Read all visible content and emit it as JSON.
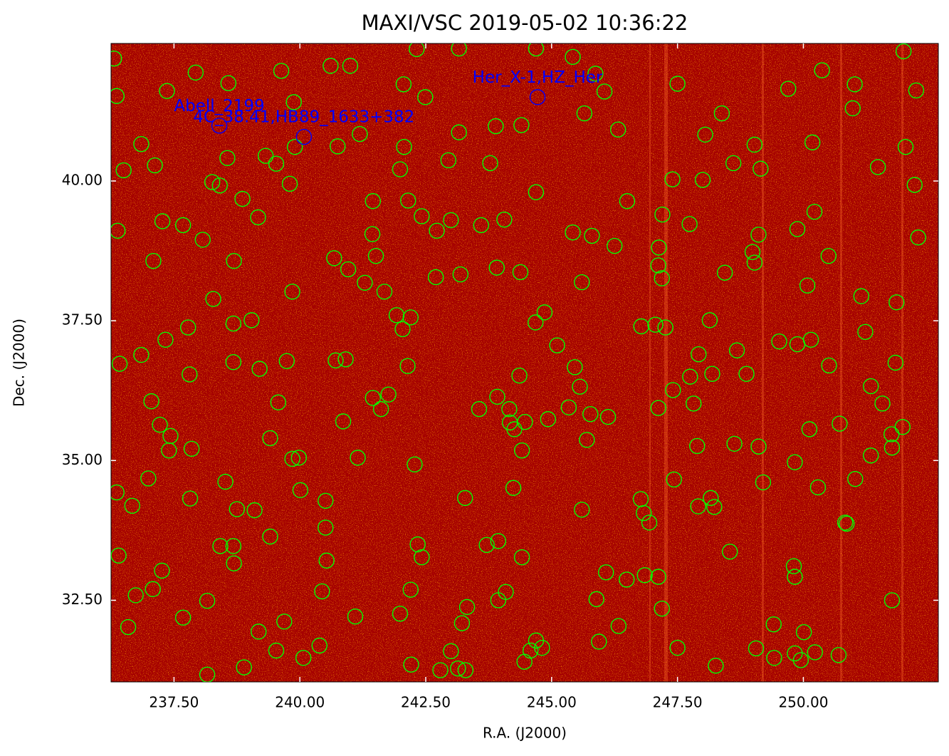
{
  "chart_data": {
    "type": "scatter",
    "title": "MAXI/VSC 2019-05-02 10:36:22",
    "xlabel": "R.A. (J2000)",
    "ylabel": "Dec. (J2000)",
    "xlim": [
      236.25,
      252.68
    ],
    "ylim": [
      31.04,
      42.46
    ],
    "xticks": [
      {
        "value": 237.5,
        "label": "237.50"
      },
      {
        "value": 240,
        "label": "240.00"
      },
      {
        "value": 242.5,
        "label": "242.50"
      },
      {
        "value": 245,
        "label": "245.00"
      },
      {
        "value": 247.5,
        "label": "247.50"
      },
      {
        "value": 250,
        "label": "250.00"
      }
    ],
    "yticks": [
      {
        "value": 32.5,
        "label": "32.50"
      },
      {
        "value": 35,
        "label": "35.00"
      },
      {
        "value": 37.5,
        "label": "37.50"
      },
      {
        "value": 40,
        "label": "40.00"
      }
    ],
    "series": [
      {
        "color": "#00ff00",
        "x": [
          236.31,
          236.36,
          237.93,
          238.58,
          239.63,
          241.0,
          240.61,
          237.36,
          239.88,
          242.06,
          242.49,
          242.32,
          243.16,
          244.69,
          245.42,
          245.87,
          246.05,
          245.65,
          247.5,
          249.7,
          250.37,
          251.02,
          252.24,
          251.99,
          250.98,
          248.38,
          244.4,
          243.89,
          243.16,
          241.19,
          242.07,
          240.75,
          239.9,
          238.56,
          239.32,
          239.53,
          236.85,
          237.12,
          236.5,
          238.26,
          238.41,
          239.8,
          241.99,
          242.95,
          243.78,
          244.69,
          246.32,
          248.05,
          249.03,
          250.18,
          252.03,
          248.61,
          249.15,
          251.48,
          252.21,
          247.4,
          248.0,
          238.86,
          241.45,
          242.15,
          242.42,
          243.0,
          242.72,
          243.6,
          244.06,
          246.5,
          247.2,
          247.74,
          250.22,
          252.28,
          236.38,
          237.27,
          237.68,
          238.07,
          239.17,
          241.44,
          245.42,
          245.8,
          246.25,
          247.13,
          249.11,
          249.88,
          248.99,
          249.03,
          250.5,
          237.09,
          238.69,
          240.68,
          240.96,
          241.51,
          241.29,
          241.68,
          242.7,
          243.19,
          243.91,
          244.38,
          245.6,
          247.12,
          247.19,
          248.44,
          250.08,
          251.15,
          251.85,
          238.28,
          239.85,
          238.68,
          239.04,
          237.78,
          237.33,
          241.92,
          242.2,
          242.04,
          244.68,
          244.86,
          246.78,
          247.06,
          247.26,
          248.14,
          251.23,
          236.42,
          236.85,
          237.81,
          238.68,
          239.2,
          239.74,
          240.71,
          240.91,
          242.14,
          245.11,
          245.46,
          244.36,
          247.92,
          247.75,
          248.19,
          248.68,
          248.87,
          249.52,
          249.88,
          250.15,
          250.51,
          251.83,
          251.34,
          237.05,
          239.57,
          241.45,
          241.76,
          241.61,
          243.56,
          243.92,
          244.16,
          245.56,
          245.34,
          245.77,
          246.12,
          247.12,
          247.41,
          247.82,
          240.86,
          244.17,
          244.26,
          244.47,
          244.93,
          237.22,
          237.43,
          237.4,
          237.85,
          239.41,
          239.85,
          239.98,
          241.15,
          242.28,
          244.41,
          245.7,
          247.89,
          248.63,
          249.11,
          249.83,
          250.12,
          250.72,
          251.03,
          251.57,
          251.75,
          251.76,
          251.97,
          251.34,
          236.36,
          236.67,
          236.99,
          238.52,
          237.82,
          240.01,
          240.51,
          238.75,
          239.1,
          243.28,
          244.24,
          245.6,
          246.77,
          246.83,
          246.94,
          247.43,
          247.91,
          248.16,
          248.23,
          249.2,
          250.29,
          250.86,
          250.83,
          236.4,
          238.42,
          238.68,
          238.69,
          239.41,
          240.51,
          240.53,
          242.34,
          242.42,
          243.71,
          243.94,
          244.41,
          248.54,
          249.81,
          249.83,
          237.26,
          237.08,
          236.74,
          238.16,
          240.44,
          242.2,
          244.09,
          243.94,
          243.32,
          245.89,
          246.08,
          246.49,
          246.85,
          247.12,
          247.19,
          251.76,
          236.59,
          237.68,
          239.18,
          239.69,
          240.39,
          241.1,
          241.99,
          243.22,
          246.33,
          245.94,
          249.41,
          250.01,
          239.53,
          240.07,
          238.89,
          238.16,
          242.21,
          242.79,
          243.0,
          243.14,
          243.29,
          244.46,
          244.58,
          244.69,
          244.81,
          247.5,
          248.26,
          249.06,
          249.42,
          249.83,
          249.95,
          250.23,
          250.7
        ],
        "y": [
          42.19,
          41.52,
          41.94,
          41.75,
          41.97,
          42.06,
          42.06,
          41.61,
          41.41,
          41.73,
          41.5,
          42.36,
          42.37,
          42.37,
          42.22,
          41.92,
          41.6,
          41.21,
          41.74,
          41.65,
          41.98,
          41.73,
          41.62,
          42.32,
          41.3,
          41.21,
          41.0,
          40.98,
          40.87,
          40.84,
          40.61,
          40.62,
          40.61,
          40.41,
          40.45,
          40.31,
          40.66,
          40.28,
          40.19,
          39.98,
          39.92,
          39.95,
          40.21,
          40.37,
          40.32,
          39.8,
          40.92,
          40.83,
          40.65,
          40.69,
          40.61,
          40.32,
          40.22,
          40.25,
          39.93,
          40.03,
          40.02,
          39.68,
          39.64,
          39.65,
          39.37,
          39.3,
          39.11,
          39.21,
          39.31,
          39.64,
          39.4,
          39.23,
          39.45,
          38.99,
          39.11,
          39.28,
          39.21,
          38.95,
          39.35,
          39.05,
          39.08,
          39.02,
          38.84,
          38.81,
          39.04,
          39.14,
          38.73,
          38.54,
          38.66,
          38.57,
          38.57,
          38.62,
          38.42,
          38.66,
          38.18,
          38.02,
          38.28,
          38.33,
          38.45,
          38.37,
          38.19,
          38.49,
          38.26,
          38.36,
          38.13,
          37.94,
          37.83,
          37.89,
          38.02,
          37.45,
          37.51,
          37.38,
          37.16,
          37.6,
          37.56,
          37.35,
          37.47,
          37.65,
          37.4,
          37.43,
          37.38,
          37.51,
          37.3,
          36.73,
          36.89,
          36.54,
          36.76,
          36.64,
          36.78,
          36.79,
          36.81,
          36.69,
          37.06,
          36.67,
          36.52,
          36.9,
          36.5,
          36.55,
          36.97,
          36.55,
          37.13,
          37.08,
          37.16,
          36.7,
          36.75,
          36.33,
          36.06,
          36.04,
          36.12,
          36.18,
          35.92,
          35.92,
          36.14,
          35.92,
          36.32,
          35.95,
          35.83,
          35.78,
          35.94,
          36.26,
          36.02,
          35.7,
          35.68,
          35.56,
          35.69,
          35.74,
          35.64,
          35.44,
          35.18,
          35.21,
          35.4,
          35.03,
          35.05,
          35.05,
          34.93,
          35.18,
          35.37,
          35.26,
          35.3,
          35.25,
          34.97,
          35.56,
          35.66,
          34.67,
          36.02,
          35.47,
          35.23,
          35.6,
          35.09,
          34.43,
          34.19,
          34.68,
          34.62,
          34.32,
          34.47,
          34.28,
          34.13,
          34.11,
          34.33,
          34.51,
          34.12,
          34.31,
          34.06,
          33.89,
          34.66,
          34.18,
          34.33,
          34.17,
          34.61,
          34.52,
          33.87,
          33.89,
          33.3,
          33.47,
          33.47,
          33.16,
          33.64,
          33.8,
          33.21,
          33.5,
          33.27,
          33.49,
          33.56,
          33.27,
          33.37,
          33.11,
          32.92,
          33.03,
          32.7,
          32.59,
          32.49,
          32.66,
          32.69,
          32.65,
          32.5,
          32.38,
          32.52,
          33.0,
          32.87,
          32.95,
          32.92,
          32.35,
          32.5,
          32.02,
          32.19,
          31.94,
          32.12,
          31.69,
          32.21,
          32.26,
          32.09,
          32.04,
          31.76,
          32.07,
          31.93,
          31.6,
          31.47,
          31.3,
          31.17,
          31.35,
          31.25,
          31.59,
          31.28,
          31.25,
          31.4,
          31.6,
          31.78,
          31.65,
          31.65,
          31.33,
          31.64,
          31.47,
          31.55,
          31.43,
          31.57,
          31.52
        ]
      }
    ],
    "annotations": [
      {
        "text": "Abell_2199",
        "x": 238.4,
        "y": 40.99,
        "color": "#0000ff"
      },
      {
        "text": "4C_38.41,HB89_1633+382",
        "x": 240.08,
        "y": 40.79,
        "color": "#0000ff"
      },
      {
        "text": "Her_X-1,HZ_Her",
        "x": 244.72,
        "y": 41.5,
        "color": "#0000ff"
      }
    ]
  }
}
